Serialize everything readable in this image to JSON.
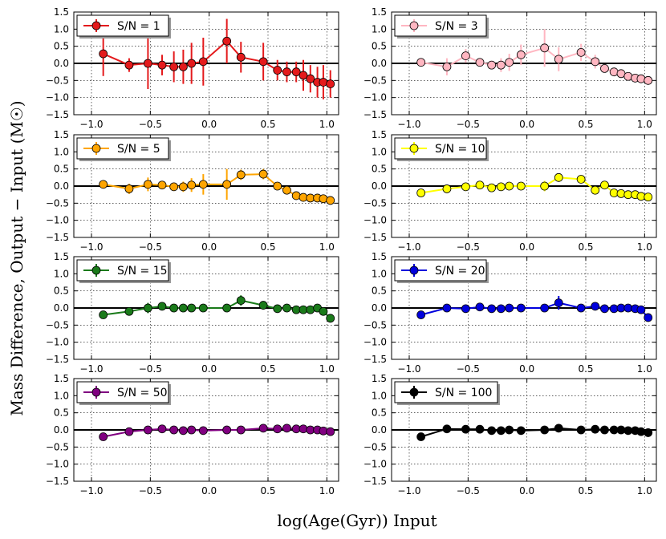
{
  "figure": {
    "ylabel": "Mass Difference, Output − Input (M☉)",
    "xlabel": "log(Age(Gyr)) Input"
  },
  "chart_data": [
    {
      "type": "scatter",
      "series": [
        {
          "name": "S/N = 1",
          "color": "#e41a1c",
          "x": [
            -0.9,
            -0.68,
            -0.52,
            -0.4,
            -0.3,
            -0.22,
            -0.15,
            -0.05,
            0.15,
            0.27,
            0.46,
            0.58,
            0.66,
            0.74,
            0.8,
            0.86,
            0.92,
            0.97,
            1.03
          ],
          "y": [
            0.28,
            -0.05,
            0.0,
            -0.05,
            -0.1,
            -0.1,
            0.0,
            0.05,
            0.65,
            0.18,
            0.05,
            -0.2,
            -0.25,
            -0.25,
            -0.35,
            -0.45,
            -0.55,
            -0.55,
            -0.6
          ],
          "err": [
            0.65,
            0.2,
            0.75,
            0.3,
            0.45,
            0.5,
            0.6,
            0.7,
            0.65,
            0.45,
            0.55,
            0.3,
            0.3,
            0.3,
            0.45,
            0.4,
            0.45,
            0.5,
            0.4
          ]
        }
      ],
      "xlim": [
        -1.15,
        1.1
      ],
      "ylim": [
        -1.5,
        1.5
      ],
      "xticks": [
        -1.0,
        -0.5,
        0.0,
        0.5,
        1.0
      ],
      "yticks": [
        -1.5,
        -1.0,
        -0.5,
        0.0,
        0.5,
        1.0,
        1.5
      ],
      "grid": true,
      "legend": "top-left"
    },
    {
      "type": "scatter",
      "series": [
        {
          "name": "S/N = 3",
          "color": "#ffb6c1",
          "x": [
            -0.9,
            -0.68,
            -0.52,
            -0.4,
            -0.3,
            -0.22,
            -0.15,
            -0.05,
            0.15,
            0.27,
            0.46,
            0.58,
            0.66,
            0.74,
            0.8,
            0.86,
            0.92,
            0.97,
            1.03
          ],
          "y": [
            0.03,
            -0.1,
            0.22,
            0.03,
            -0.05,
            -0.05,
            0.03,
            0.25,
            0.45,
            0.12,
            0.32,
            0.05,
            -0.15,
            -0.25,
            -0.3,
            -0.38,
            -0.43,
            -0.45,
            -0.5
          ],
          "err": [
            0.05,
            0.25,
            0.2,
            0.05,
            0.1,
            0.2,
            0.25,
            0.3,
            0.55,
            0.35,
            0.25,
            0.2,
            0.1,
            0.05,
            0.05,
            0.05,
            0.05,
            0.05,
            0.05
          ]
        }
      ],
      "xlim": [
        -1.15,
        1.1
      ],
      "ylim": [
        -1.5,
        1.5
      ],
      "xticks": [
        -1.0,
        -0.5,
        0.0,
        0.5,
        1.0
      ],
      "yticks": [
        -1.5,
        -1.0,
        -0.5,
        0.0,
        0.5,
        1.0,
        1.5
      ],
      "grid": true,
      "legend": "top-left"
    },
    {
      "type": "scatter",
      "series": [
        {
          "name": "S/N = 5",
          "color": "#ffa500",
          "x": [
            -0.9,
            -0.68,
            -0.52,
            -0.4,
            -0.3,
            -0.22,
            -0.15,
            -0.05,
            0.15,
            0.27,
            0.46,
            0.58,
            0.66,
            0.74,
            0.8,
            0.86,
            0.92,
            0.97,
            1.03
          ],
          "y": [
            0.05,
            -0.08,
            0.05,
            0.03,
            -0.02,
            -0.02,
            0.03,
            0.05,
            0.05,
            0.33,
            0.35,
            0.0,
            -0.12,
            -0.28,
            -0.33,
            -0.35,
            -0.35,
            -0.37,
            -0.42
          ],
          "err": [
            0.05,
            0.15,
            0.2,
            0.05,
            0.1,
            0.15,
            0.2,
            0.3,
            0.45,
            0.15,
            0.15,
            0.1,
            0.05,
            0.05,
            0.05,
            0.05,
            0.05,
            0.05,
            0.05
          ]
        }
      ],
      "xlim": [
        -1.15,
        1.1
      ],
      "ylim": [
        -1.5,
        1.5
      ],
      "xticks": [
        -1.0,
        -0.5,
        0.0,
        0.5,
        1.0
      ],
      "yticks": [
        -1.5,
        -1.0,
        -0.5,
        0.0,
        0.5,
        1.0,
        1.5
      ],
      "grid": true,
      "legend": "top-left"
    },
    {
      "type": "scatter",
      "series": [
        {
          "name": "S/N = 10",
          "color": "#ffff00",
          "x": [
            -0.9,
            -0.68,
            -0.52,
            -0.4,
            -0.3,
            -0.22,
            -0.15,
            -0.05,
            0.15,
            0.27,
            0.46,
            0.58,
            0.66,
            0.74,
            0.8,
            0.86,
            0.92,
            0.97,
            1.03
          ],
          "y": [
            -0.2,
            -0.08,
            -0.02,
            0.03,
            -0.05,
            -0.02,
            0.0,
            0.0,
            0.0,
            0.25,
            0.2,
            -0.12,
            0.03,
            -0.2,
            -0.22,
            -0.25,
            -0.25,
            -0.3,
            -0.32
          ],
          "err": [
            0.05,
            0.05,
            0.05,
            0.05,
            0.05,
            0.05,
            0.05,
            0.05,
            0.15,
            0.05,
            0.05,
            0.1,
            0.05,
            0.05,
            0.05,
            0.05,
            0.05,
            0.05,
            0.05
          ]
        }
      ],
      "xlim": [
        -1.15,
        1.1
      ],
      "ylim": [
        -1.5,
        1.5
      ],
      "xticks": [
        -1.0,
        -0.5,
        0.0,
        0.5,
        1.0
      ],
      "yticks": [
        -1.5,
        -1.0,
        -0.5,
        0.0,
        0.5,
        1.0,
        1.5
      ],
      "grid": true,
      "legend": "top-left"
    },
    {
      "type": "scatter",
      "series": [
        {
          "name": "S/N = 15",
          "color": "#1a7a1a",
          "x": [
            -0.9,
            -0.68,
            -0.52,
            -0.4,
            -0.3,
            -0.22,
            -0.15,
            -0.05,
            0.15,
            0.27,
            0.46,
            0.58,
            0.66,
            0.74,
            0.8,
            0.86,
            0.92,
            0.97,
            1.03
          ],
          "y": [
            -0.2,
            -0.1,
            0.0,
            0.05,
            0.0,
            0.0,
            0.0,
            0.0,
            0.0,
            0.22,
            0.08,
            -0.02,
            0.0,
            -0.05,
            -0.05,
            -0.05,
            0.0,
            -0.1,
            -0.3
          ],
          "err": [
            0.05,
            0.05,
            0.15,
            0.05,
            0.05,
            0.05,
            0.05,
            0.05,
            0.05,
            0.15,
            0.05,
            0.05,
            0.05,
            0.05,
            0.05,
            0.05,
            0.05,
            0.05,
            0.05
          ]
        }
      ],
      "xlim": [
        -1.15,
        1.1
      ],
      "ylim": [
        -1.5,
        1.5
      ],
      "xticks": [
        -1.0,
        -0.5,
        0.0,
        0.5,
        1.0
      ],
      "yticks": [
        -1.5,
        -1.0,
        -0.5,
        0.0,
        0.5,
        1.0,
        1.5
      ],
      "grid": true,
      "legend": "top-left"
    },
    {
      "type": "scatter",
      "series": [
        {
          "name": "S/N = 20",
          "color": "#0000dd",
          "x": [
            -0.9,
            -0.68,
            -0.52,
            -0.4,
            -0.3,
            -0.22,
            -0.15,
            -0.05,
            0.15,
            0.27,
            0.46,
            0.58,
            0.66,
            0.74,
            0.8,
            0.86,
            0.92,
            0.97,
            1.03
          ],
          "y": [
            -0.2,
            0.0,
            -0.02,
            0.03,
            -0.02,
            -0.02,
            0.0,
            0.0,
            0.0,
            0.15,
            0.0,
            0.05,
            -0.02,
            -0.02,
            0.0,
            0.0,
            -0.02,
            -0.05,
            -0.28
          ],
          "err": [
            0.05,
            0.05,
            0.1,
            0.05,
            0.05,
            0.05,
            0.05,
            0.05,
            0.05,
            0.2,
            0.05,
            0.05,
            0.05,
            0.05,
            0.05,
            0.05,
            0.05,
            0.05,
            0.05
          ]
        }
      ],
      "xlim": [
        -1.15,
        1.1
      ],
      "ylim": [
        -1.5,
        1.5
      ],
      "xticks": [
        -1.0,
        -0.5,
        0.0,
        0.5,
        1.0
      ],
      "yticks": [
        -1.5,
        -1.0,
        -0.5,
        0.0,
        0.5,
        1.0,
        1.5
      ],
      "grid": true,
      "legend": "top-left"
    },
    {
      "type": "scatter",
      "series": [
        {
          "name": "S/N = 50",
          "color": "#800080",
          "x": [
            -0.9,
            -0.68,
            -0.52,
            -0.4,
            -0.3,
            -0.22,
            -0.15,
            -0.05,
            0.15,
            0.27,
            0.46,
            0.58,
            0.66,
            0.74,
            0.8,
            0.86,
            0.92,
            0.97,
            1.03
          ],
          "y": [
            -0.2,
            -0.05,
            0.0,
            0.03,
            0.0,
            -0.02,
            0.0,
            -0.02,
            0.0,
            0.0,
            0.05,
            0.03,
            0.05,
            0.03,
            0.03,
            0.0,
            0.0,
            -0.03,
            -0.05
          ],
          "err": [
            0.04,
            0.04,
            0.04,
            0.04,
            0.04,
            0.04,
            0.04,
            0.04,
            0.04,
            0.04,
            0.04,
            0.04,
            0.04,
            0.04,
            0.04,
            0.04,
            0.04,
            0.04,
            0.04
          ]
        }
      ],
      "xlim": [
        -1.15,
        1.1
      ],
      "ylim": [
        -1.5,
        1.5
      ],
      "xticks": [
        -1.0,
        -0.5,
        0.0,
        0.5,
        1.0
      ],
      "yticks": [
        -1.5,
        -1.0,
        -0.5,
        0.0,
        0.5,
        1.0,
        1.5
      ],
      "grid": true,
      "legend": "top-left"
    },
    {
      "type": "scatter",
      "series": [
        {
          "name": "S/N = 100",
          "color": "#000000",
          "x": [
            -0.9,
            -0.68,
            -0.52,
            -0.4,
            -0.3,
            -0.22,
            -0.15,
            -0.05,
            0.15,
            0.27,
            0.46,
            0.58,
            0.66,
            0.74,
            0.8,
            0.86,
            0.92,
            0.97,
            1.03
          ],
          "y": [
            -0.2,
            0.03,
            0.02,
            0.02,
            -0.02,
            -0.02,
            0.0,
            -0.02,
            0.0,
            0.05,
            0.0,
            0.02,
            0.0,
            0.0,
            0.0,
            -0.02,
            -0.02,
            -0.05,
            -0.08
          ],
          "err": [
            0.04,
            0.04,
            0.04,
            0.04,
            0.04,
            0.04,
            0.04,
            0.04,
            0.04,
            0.04,
            0.04,
            0.04,
            0.04,
            0.04,
            0.04,
            0.04,
            0.04,
            0.04,
            0.04
          ]
        }
      ],
      "xlim": [
        -1.15,
        1.1
      ],
      "ylim": [
        -1.5,
        1.5
      ],
      "xticks": [
        -1.0,
        -0.5,
        0.0,
        0.5,
        1.0
      ],
      "yticks": [
        -1.5,
        -1.0,
        -0.5,
        0.0,
        0.5,
        1.0,
        1.5
      ],
      "grid": true,
      "legend": "top-left"
    }
  ]
}
